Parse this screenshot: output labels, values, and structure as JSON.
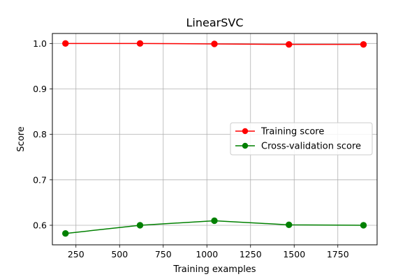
{
  "chart_data": {
    "type": "line",
    "title": "LinearSVC",
    "xlabel": "Training examples",
    "ylabel": "Score",
    "xlim": [
      115,
      1975
    ],
    "ylim": [
      0.557,
      1.022
    ],
    "xticks": [
      250,
      500,
      750,
      1000,
      1250,
      1500,
      1750
    ],
    "yticks": [
      0.6,
      0.7,
      0.8,
      0.9,
      1.0
    ],
    "xtick_labels": [
      "250",
      "500",
      "750",
      "1000",
      "1250",
      "1500",
      "1750"
    ],
    "ytick_labels": [
      "0.6",
      "0.7",
      "0.8",
      "0.9",
      "1.0"
    ],
    "grid": true,
    "legend_position": "center-right",
    "series": [
      {
        "name": "Training score",
        "color": "#ff0000",
        "marker": "circle",
        "x": [
          190,
          617,
          1043,
          1470,
          1897
        ],
        "y": [
          1.0,
          1.0,
          0.999,
          0.998,
          0.998
        ]
      },
      {
        "name": "Cross-validation score",
        "color": "#008000",
        "marker": "circle",
        "x": [
          190,
          617,
          1043,
          1470,
          1897
        ],
        "y": [
          0.582,
          0.6,
          0.61,
          0.601,
          0.6
        ]
      }
    ]
  }
}
